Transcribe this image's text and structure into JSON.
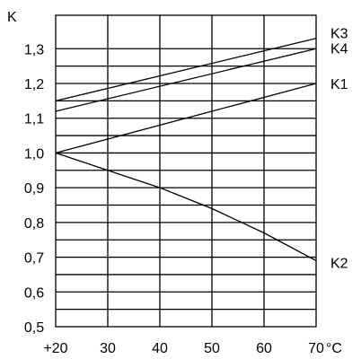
{
  "chart_data": {
    "type": "line",
    "ylabel": "K",
    "xlabel": "°C",
    "x_ticks": [
      20,
      30,
      40,
      50,
      60,
      70
    ],
    "x_tick_labels": [
      "+20",
      "30",
      "40",
      "50",
      "60",
      "70"
    ],
    "y_ticks": [
      0.5,
      0.6,
      0.7,
      0.8,
      0.9,
      1.0,
      1.1,
      1.2,
      1.3
    ],
    "y_tick_labels": [
      "0,5",
      "0,6",
      "0,7",
      "0,8",
      "0,9",
      "1,0",
      "1,1",
      "1,2",
      "1,3"
    ],
    "xlim": [
      20,
      70
    ],
    "ylim": [
      0.5,
      1.35
    ],
    "grid": true,
    "series": [
      {
        "name": "K3",
        "x": [
          20,
          70
        ],
        "y": [
          1.15,
          1.33
        ]
      },
      {
        "name": "K4",
        "x": [
          20,
          70
        ],
        "y": [
          1.12,
          1.3
        ]
      },
      {
        "name": "K1",
        "x": [
          20,
          70
        ],
        "y": [
          1.0,
          1.2
        ]
      },
      {
        "name": "K2",
        "x": [
          20,
          30,
          40,
          50,
          60,
          70
        ],
        "y": [
          1.0,
          0.95,
          0.9,
          0.84,
          0.77,
          0.69
        ]
      }
    ],
    "colors": {
      "line": "#000000",
      "grid": "#000000",
      "background": "#ffffff"
    }
  }
}
